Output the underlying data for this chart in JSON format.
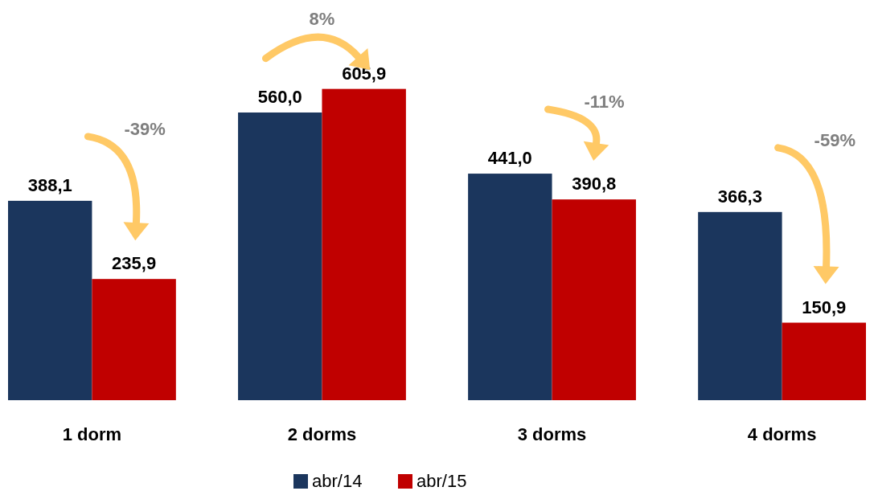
{
  "chart_data": {
    "type": "bar",
    "categories": [
      "1 dorm",
      "2 dorms",
      "3 dorms",
      "4 dorms"
    ],
    "series": [
      {
        "name": "abr/14",
        "color": "#1b365d",
        "values": [
          388.1,
          560.0,
          441.0,
          366.3
        ],
        "value_labels": [
          "388,1",
          "560,0",
          "441,0",
          "366,3"
        ]
      },
      {
        "name": "abr/15",
        "color": "#c00000",
        "values": [
          235.9,
          605.9,
          390.8,
          150.9
        ],
        "value_labels": [
          "235,9",
          "605,9",
          "390,8",
          "150,9"
        ]
      }
    ],
    "annotations": [
      "-39%",
      "8%",
      "-11%",
      "-59%"
    ],
    "legend": "bottom"
  }
}
